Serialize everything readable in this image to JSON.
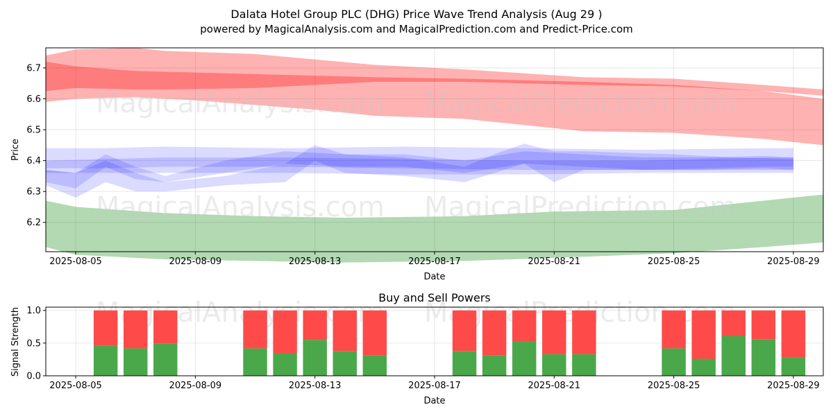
{
  "title": "Dalata Hotel Group PLC (DHG) Price Wave Trend Analysis (Aug 29 )",
  "subtitle": "powered by MagicalAnalysis.com and MagicalPrediction.com and Predict-Price.com",
  "watermarks": [
    "MagicalAnalysis.com",
    "MagicalPrediction.com"
  ],
  "colors": {
    "red_band": "#ff0000",
    "green_band": "#008000",
    "blue_band": "#0000ff",
    "buy": "#4aa84a",
    "sell": "#ff4a4a",
    "grid": "#e0e0e0"
  },
  "chart_data": [
    {
      "type": "area",
      "title": "",
      "xlabel": "Date",
      "ylabel": "Price",
      "xlim": [
        "2025-08-04",
        "2025-08-30"
      ],
      "ylim": [
        6.105,
        6.765
      ],
      "grid": true,
      "x_ticks": [
        "2025-08-05",
        "2025-08-09",
        "2025-08-13",
        "2025-08-17",
        "2025-08-21",
        "2025-08-25",
        "2025-08-29"
      ],
      "y_ticks": [
        6.2,
        6.3,
        6.4,
        6.5,
        6.6,
        6.7
      ],
      "series": [
        {
          "color": "red",
          "x": [
            "2025-08-04",
            "2025-08-05",
            "2025-08-07",
            "2025-08-08",
            "2025-08-11",
            "2025-08-15",
            "2025-08-18",
            "2025-08-22",
            "2025-08-25",
            "2025-08-28",
            "2025-08-30"
          ],
          "upper": [
            6.74,
            6.76,
            6.765,
            6.755,
            6.745,
            6.71,
            6.695,
            6.67,
            6.665,
            6.645,
            6.63
          ],
          "lower": [
            6.625,
            6.635,
            6.63,
            6.63,
            6.635,
            6.655,
            6.655,
            6.645,
            6.64,
            6.625,
            6.61
          ]
        },
        {
          "color": "red",
          "x": [
            "2025-08-04",
            "2025-08-05",
            "2025-08-07",
            "2025-08-09",
            "2025-08-11",
            "2025-08-13",
            "2025-08-15",
            "2025-08-18",
            "2025-08-22",
            "2025-08-25",
            "2025-08-28",
            "2025-08-30"
          ],
          "upper": [
            6.72,
            6.705,
            6.69,
            6.685,
            6.68,
            6.675,
            6.67,
            6.665,
            6.655,
            6.645,
            6.625,
            6.6
          ],
          "lower": [
            6.59,
            6.6,
            6.605,
            6.595,
            6.58,
            6.565,
            6.545,
            6.535,
            6.495,
            6.49,
            6.47,
            6.45
          ]
        },
        {
          "color": "green",
          "x": [
            "2025-08-04",
            "2025-08-05",
            "2025-08-08",
            "2025-08-11",
            "2025-08-14",
            "2025-08-18",
            "2025-08-21",
            "2025-08-25",
            "2025-08-28",
            "2025-08-30"
          ],
          "upper": [
            6.27,
            6.25,
            6.23,
            6.22,
            6.215,
            6.22,
            6.235,
            6.24,
            6.27,
            6.29
          ],
          "lower": [
            6.12,
            6.095,
            6.08,
            6.075,
            6.07,
            6.075,
            6.085,
            6.1,
            6.12,
            6.135
          ]
        },
        {
          "color": "blue",
          "x": [
            "2025-08-04",
            "2025-08-06",
            "2025-08-08",
            "2025-08-12",
            "2025-08-16",
            "2025-08-20",
            "2025-08-24",
            "2025-08-28",
            "2025-08-29"
          ],
          "upper": [
            6.44,
            6.44,
            6.445,
            6.44,
            6.445,
            6.44,
            6.435,
            6.44,
            6.44
          ],
          "lower": [
            6.36,
            6.36,
            6.36,
            6.36,
            6.355,
            6.355,
            6.36,
            6.36,
            6.36
          ]
        },
        {
          "color": "blue",
          "x": [
            "2025-08-04",
            "2025-08-06",
            "2025-08-08",
            "2025-08-12",
            "2025-08-16",
            "2025-08-20",
            "2025-08-24",
            "2025-08-28",
            "2025-08-29"
          ],
          "upper": [
            6.4,
            6.405,
            6.41,
            6.41,
            6.405,
            6.4,
            6.4,
            6.41,
            6.41
          ],
          "lower": [
            6.375,
            6.375,
            6.38,
            6.38,
            6.375,
            6.37,
            6.37,
            6.38,
            6.38
          ]
        },
        {
          "color": "blue",
          "x": [
            "2025-08-04",
            "2025-08-05",
            "2025-08-06",
            "2025-08-07",
            "2025-08-08",
            "2025-08-10",
            "2025-08-12",
            "2025-08-13",
            "2025-08-14",
            "2025-08-16",
            "2025-08-18",
            "2025-08-19",
            "2025-08-20",
            "2025-08-21",
            "2025-08-22",
            "2025-08-25",
            "2025-08-27",
            "2025-08-29"
          ],
          "upper": [
            6.37,
            6.36,
            6.4,
            6.36,
            6.33,
            6.35,
            6.39,
            6.45,
            6.42,
            6.41,
            6.38,
            6.42,
            6.455,
            6.43,
            6.43,
            6.42,
            6.41,
            6.405
          ],
          "lower": [
            6.32,
            6.28,
            6.33,
            6.3,
            6.3,
            6.32,
            6.33,
            6.4,
            6.36,
            6.35,
            6.33,
            6.36,
            6.39,
            6.33,
            6.37,
            6.37,
            6.37,
            6.37
          ]
        },
        {
          "color": "blue",
          "x": [
            "2025-08-04",
            "2025-08-05",
            "2025-08-06",
            "2025-08-07",
            "2025-08-08",
            "2025-08-10",
            "2025-08-12",
            "2025-08-14",
            "2025-08-16",
            "2025-08-18",
            "2025-08-20",
            "2025-08-22",
            "2025-08-24",
            "2025-08-26",
            "2025-08-28",
            "2025-08-29"
          ],
          "upper": [
            6.37,
            6.36,
            6.42,
            6.38,
            6.35,
            6.4,
            6.43,
            6.42,
            6.42,
            6.4,
            6.43,
            6.42,
            6.41,
            6.41,
            6.415,
            6.41
          ],
          "lower": [
            6.33,
            6.31,
            6.38,
            6.34,
            6.33,
            6.36,
            6.39,
            6.38,
            6.38,
            6.36,
            6.39,
            6.38,
            6.37,
            6.37,
            6.375,
            6.37
          ]
        }
      ]
    },
    {
      "type": "bar",
      "title": "Buy and Sell Powers",
      "xlabel": "Date",
      "ylabel": "Signal Strength",
      "xlim": [
        "2025-08-04",
        "2025-08-30"
      ],
      "ylim": [
        0,
        1.05
      ],
      "grid": true,
      "x_ticks": [
        "2025-08-05",
        "2025-08-09",
        "2025-08-13",
        "2025-08-17",
        "2025-08-21",
        "2025-08-25",
        "2025-08-29"
      ],
      "y_ticks": [
        0.0,
        0.5,
        1.0
      ],
      "categories": [
        "2025-08-06",
        "2025-08-07",
        "2025-08-08",
        "2025-08-11",
        "2025-08-12",
        "2025-08-13",
        "2025-08-14",
        "2025-08-15",
        "2025-08-18",
        "2025-08-19",
        "2025-08-20",
        "2025-08-21",
        "2025-08-22",
        "2025-08-25",
        "2025-08-26",
        "2025-08-27",
        "2025-08-28",
        "2025-08-29"
      ],
      "series": [
        {
          "name": "Buy",
          "values": [
            0.46,
            0.42,
            0.49,
            0.42,
            0.35,
            0.55,
            0.38,
            0.31,
            0.38,
            0.31,
            0.52,
            0.33,
            0.33,
            0.42,
            0.26,
            0.61,
            0.56,
            0.28
          ]
        },
        {
          "name": "Sell",
          "values": [
            0.54,
            0.58,
            0.51,
            0.58,
            0.65,
            0.45,
            0.62,
            0.69,
            0.62,
            0.69,
            0.48,
            0.67,
            0.67,
            0.58,
            0.74,
            0.39,
            0.44,
            0.72
          ]
        }
      ]
    }
  ]
}
